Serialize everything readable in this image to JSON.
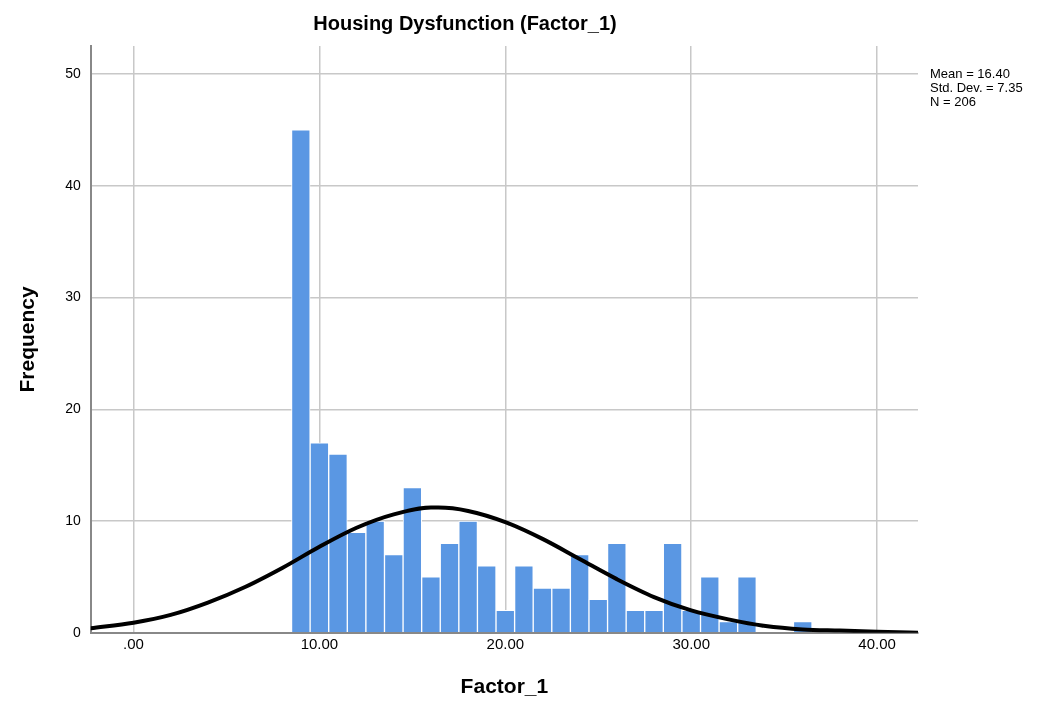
{
  "chart_data": {
    "type": "histogram",
    "title": "Housing Dysfunction (Factor_1)",
    "xlabel": "Factor_1",
    "ylabel": "Frequency",
    "bins": [
      8.5,
      9.5,
      10.5,
      11.5,
      12.5,
      13.5,
      14.5,
      15.5,
      16.5,
      17.5,
      18.5,
      19.5,
      20.5,
      21.5,
      22.5,
      23.5,
      24.5,
      25.5,
      26.5,
      27.5,
      28.5,
      29.5,
      30.5,
      31.5,
      32.5,
      33.5,
      34.5,
      35.5,
      36.5
    ],
    "values": [
      45,
      17,
      16,
      9,
      10,
      7,
      13,
      5,
      8,
      10,
      6,
      2,
      6,
      4,
      4,
      7,
      3,
      8,
      2,
      2,
      8,
      2,
      5,
      1,
      5,
      0,
      0,
      1
    ],
    "color": "#5a97e3",
    "series": [
      {
        "type": "line",
        "color": "#000000",
        "marker": "none",
        "x": [
          -2.3,
          0,
          2,
          4,
          6,
          8,
          10,
          12,
          14,
          16,
          16.4,
          18,
          20,
          22,
          24,
          26,
          28,
          30,
          32,
          34,
          36,
          38,
          40,
          42.2
        ],
        "values": [
          0.4,
          0.9,
          1.6,
          2.7,
          4.1,
          5.8,
          7.7,
          9.4,
          10.6,
          11.2,
          11.2,
          10.9,
          9.9,
          8.4,
          6.6,
          4.8,
          3.2,
          2.0,
          1.2,
          0.6,
          0.3,
          0.2,
          0.1,
          0.0
        ]
      }
    ],
    "xlim": [
      -2.3,
      42.2
    ],
    "xticks": [
      {
        "value": 0,
        "label": ".00"
      },
      {
        "value": 10,
        "label": "10.00"
      },
      {
        "value": 20,
        "label": "20.00"
      },
      {
        "value": 30,
        "label": "30.00"
      },
      {
        "value": 40,
        "label": "40.00"
      }
    ],
    "ylim": [
      0,
      52.5
    ],
    "yticks": [
      0,
      10,
      20,
      30,
      40,
      50
    ],
    "grid": true,
    "annotations": [
      "Mean = 16.40",
      "Std. Dev. = 7.35",
      "N = 206"
    ]
  }
}
